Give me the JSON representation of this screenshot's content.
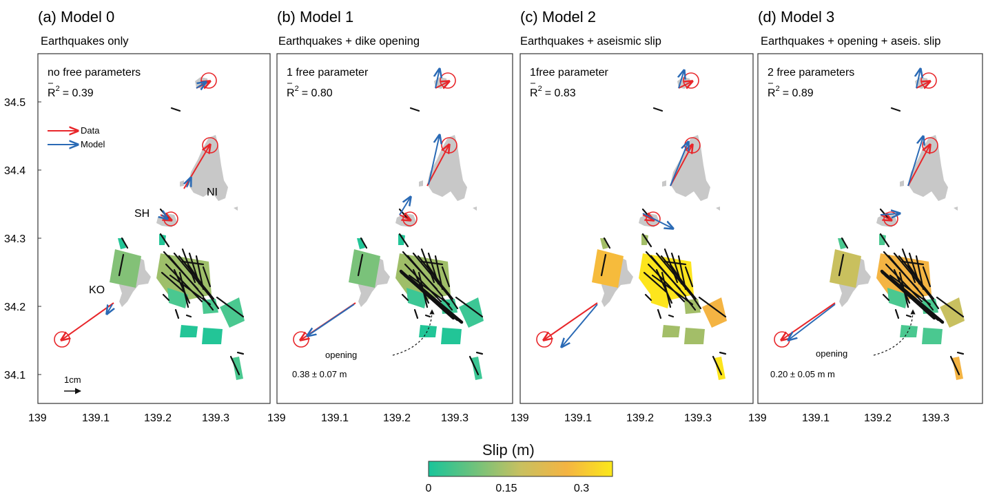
{
  "panels": [
    {
      "title": "(a) Model 0",
      "subtitle": "Earthquakes only",
      "params": "no free parameters",
      "r2_label": "R",
      "r2_value": "= 0.39",
      "model_key": "m0"
    },
    {
      "title": "(b) Model 1",
      "subtitle": "Earthquakes + dike opening",
      "params": "1 free parameter",
      "r2_label": "R",
      "r2_value": "= 0.80",
      "opening_label": "opening",
      "opening_value": "0.38 ± 0.07 m",
      "model_key": "m1"
    },
    {
      "title": "(c)  Model 2",
      "subtitle": "Earthquakes + aseismic slip",
      "params": "1free parameter",
      "r2_label": "R",
      "r2_value": "= 0.83",
      "model_key": "m2"
    },
    {
      "title": "(d) Model 3",
      "subtitle": "Earthquakes + opening + aseis. slip",
      "params": "2 free parameters",
      "r2_label": "R",
      "r2_value": "= 0.89",
      "opening_label": "opening",
      "opening_value": "0.20 ± 0.05 m  m",
      "model_key": "m3"
    }
  ],
  "legend": {
    "data_label": "Data",
    "model_label": "Model",
    "scale_label": "1cm",
    "data_color": "#e8262a",
    "model_color": "#2a6ab5"
  },
  "islands": {
    "ni": "NI",
    "sh": "SH",
    "ko": "KO"
  },
  "axes": {
    "y_ticks": [
      "34.5",
      "34.4",
      "34.3",
      "34.2",
      "34.1"
    ],
    "x_ticks": [
      "139",
      "139.1",
      "139.2",
      "139.3"
    ]
  },
  "colorbar": {
    "title": "Slip (m)",
    "tick_labels": [
      "0",
      "0.15",
      "0.3"
    ],
    "colors": [
      "#19c49a",
      "#6fc27c",
      "#c8c060",
      "#f4b443",
      "#fbe81a"
    ]
  },
  "slip_colors": {
    "m0": {
      "a": "#83c177",
      "b": "#9ebf6a",
      "c": "#4ac890",
      "d": "#23c597"
    },
    "m1": {
      "a": "#7ac27a",
      "b": "#9fbe68",
      "c": "#3cc795",
      "d": "#22c597"
    },
    "m2": {
      "a": "#f6bb3c",
      "b": "#fde51d",
      "c": "#f4b443",
      "d": "#a3be68"
    },
    "m3": {
      "a": "#c9c05e",
      "b": "#f4b443",
      "c": "#c8c060",
      "d": "#4ac890"
    }
  }
}
